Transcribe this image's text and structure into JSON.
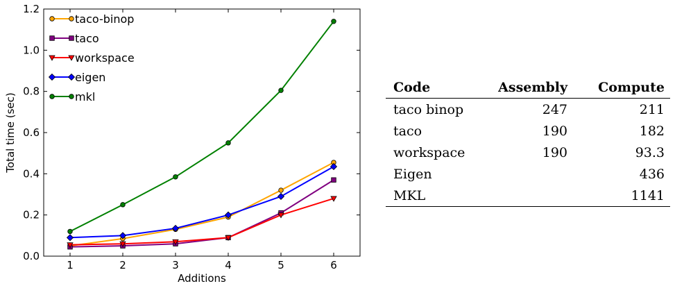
{
  "chart_data": {
    "type": "line",
    "xlabel": "Additions",
    "ylabel": "Total time (sec)",
    "x": [
      1,
      2,
      3,
      4,
      5,
      6
    ],
    "xlim": [
      0.5,
      6.5
    ],
    "ylim": [
      0,
      1.2
    ],
    "xticks": [
      "1",
      "2",
      "3",
      "4",
      "5",
      "6"
    ],
    "yticks": [
      "0.0",
      "0.2",
      "0.4",
      "0.6",
      "0.8",
      "1.0",
      "1.2"
    ],
    "grid": false,
    "legend_position": "top-left",
    "series": [
      {
        "name": "taco-binop",
        "color": "#ffa500",
        "marker": "circle",
        "values": [
          0.05,
          0.085,
          0.13,
          0.19,
          0.32,
          0.455
        ]
      },
      {
        "name": "taco",
        "color": "#800080",
        "marker": "square",
        "values": [
          0.045,
          0.05,
          0.06,
          0.09,
          0.21,
          0.37
        ]
      },
      {
        "name": "workspace",
        "color": "#ff0000",
        "marker": "triangle-down",
        "values": [
          0.055,
          0.06,
          0.07,
          0.09,
          0.2,
          0.28
        ]
      },
      {
        "name": "eigen",
        "color": "#0000ff",
        "marker": "diamond",
        "values": [
          0.09,
          0.1,
          0.135,
          0.2,
          0.29,
          0.435
        ]
      },
      {
        "name": "mkl",
        "color": "#008000",
        "marker": "circle",
        "values": [
          0.12,
          0.25,
          0.385,
          0.55,
          0.805,
          1.14
        ]
      }
    ]
  },
  "table": {
    "headers": [
      "Code",
      "Assembly",
      "Compute"
    ],
    "rows": [
      [
        "taco binop",
        "247",
        "211"
      ],
      [
        "taco",
        "190",
        "182"
      ],
      [
        "workspace",
        "190",
        "93.3"
      ],
      [
        "Eigen",
        "",
        "436"
      ],
      [
        "MKL",
        "",
        "1141"
      ]
    ]
  }
}
